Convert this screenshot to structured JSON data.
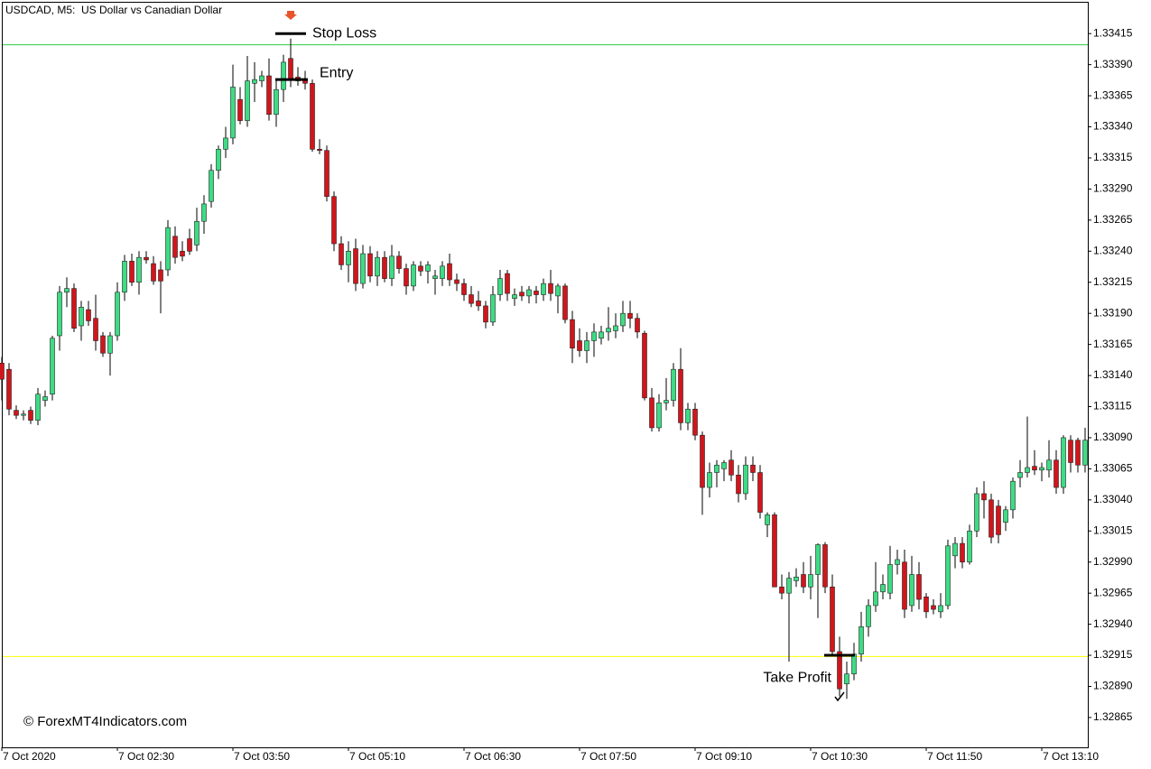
{
  "chart_data": {
    "type": "candlestick",
    "title": "USDCAD, M5:  US Dollar vs Canadian Dollar",
    "watermark": "© ForexMT4Indicators.com",
    "up_color": "#3ddc84",
    "down_color": "#d3151b",
    "ylim": [
      1.32841,
      1.33442
    ],
    "yticks": [
      {
        "value": 1.32865,
        "label": "1.32865"
      },
      {
        "value": 1.3289,
        "label": "1.32890"
      },
      {
        "value": 1.32915,
        "label": "1.32915"
      },
      {
        "value": 1.3294,
        "label": "1.32940"
      },
      {
        "value": 1.32965,
        "label": "1.32965"
      },
      {
        "value": 1.3299,
        "label": "1.32990"
      },
      {
        "value": 1.33015,
        "label": "1.33015"
      },
      {
        "value": 1.3304,
        "label": "1.33040"
      },
      {
        "value": 1.33065,
        "label": "1.33065"
      },
      {
        "value": 1.3309,
        "label": "1.33090"
      },
      {
        "value": 1.33115,
        "label": "1.33115"
      },
      {
        "value": 1.3314,
        "label": "1.33140"
      },
      {
        "value": 1.33165,
        "label": "1.33165"
      },
      {
        "value": 1.3319,
        "label": "1.33190"
      },
      {
        "value": 1.33215,
        "label": "1.33215"
      },
      {
        "value": 1.3324,
        "label": "1.33240"
      },
      {
        "value": 1.33265,
        "label": "1.33265"
      },
      {
        "value": 1.3329,
        "label": "1.33290"
      },
      {
        "value": 1.33315,
        "label": "1.33315"
      },
      {
        "value": 1.3334,
        "label": "1.33340"
      },
      {
        "value": 1.33365,
        "label": "1.33365"
      },
      {
        "value": 1.3339,
        "label": "1.33390"
      },
      {
        "value": 1.33415,
        "label": "1.33415"
      }
    ],
    "categories": [
      "7 Oct 2020",
      null,
      null,
      null,
      null,
      null,
      null,
      null,
      null,
      null,
      null,
      null,
      null,
      null,
      null,
      null,
      "7 Oct 02:30",
      null,
      null,
      null,
      null,
      null,
      null,
      null,
      null,
      null,
      null,
      null,
      null,
      null,
      null,
      null,
      "7 Oct 03:50",
      null,
      null,
      null,
      null,
      null,
      null,
      null,
      null,
      null,
      null,
      null,
      null,
      null,
      null,
      null,
      "7 Oct 05:10",
      null,
      null,
      null,
      null,
      null,
      null,
      null,
      null,
      null,
      null,
      null,
      null,
      null,
      null,
      null,
      "7 Oct 06:30",
      null,
      null,
      null,
      null,
      null,
      null,
      null,
      null,
      null,
      null,
      null,
      null,
      null,
      null,
      null,
      "7 Oct 07:50",
      null,
      null,
      null,
      null,
      null,
      null,
      null,
      null,
      null,
      null,
      null,
      null,
      null,
      null,
      null,
      "7 Oct 09:10",
      null,
      null,
      null,
      null,
      null,
      null,
      null,
      null,
      null,
      null,
      null,
      null,
      null,
      null,
      null,
      "7 Oct 10:30",
      null,
      null,
      null,
      null,
      null,
      null,
      null,
      null,
      null,
      null,
      null,
      null,
      null,
      null,
      null,
      "7 Oct 11:50",
      null,
      null,
      null,
      null,
      null,
      null,
      null,
      null,
      null,
      null,
      null,
      null,
      null,
      null,
      null,
      "7 Oct 13:10",
      null,
      null,
      null,
      null,
      null,
      null
    ],
    "open": [
      1.3315,
      1.33145,
      1.33112,
      1.33108,
      1.33112,
      1.33104,
      1.3312,
      1.33125,
      1.33172,
      1.33207,
      1.3321,
      1.3318,
      1.33193,
      1.33186,
      1.33172,
      1.33158,
      1.33172,
      1.33207,
      1.33232,
      1.33215,
      1.33235,
      1.3323,
      1.33225,
      1.33225,
      1.33252,
      1.3324,
      1.3325,
      1.33245,
      1.33264,
      1.3328,
      1.33305,
      1.33322,
      1.33331,
      1.33362,
      1.33345,
      1.33375,
      1.33377,
      1.33381,
      1.3335,
      1.3337,
      1.33395,
      1.3338,
      1.33378,
      1.33375,
      1.33322,
      1.33321,
      1.33284,
      1.33246,
      1.33229,
      1.33242,
      1.33214,
      1.33238,
      1.3322,
      1.33235,
      1.33218,
      1.33236,
      1.33226,
      1.33212,
      1.33228,
      1.33224,
      1.33218,
      1.33218,
      1.3323,
      1.33217,
      1.33214,
      1.33205,
      1.332,
      1.33196,
      1.33183,
      1.33205,
      1.33222,
      1.33202,
      1.33207,
      1.33204,
      1.33208,
      1.33205,
      1.33214,
      1.33204,
      1.33212,
      1.33185,
      1.33168,
      1.3316,
      1.33168,
      1.3317,
      1.33175,
      1.33176,
      1.3318,
      1.3319,
      1.33186,
      1.33174,
      1.33122,
      1.33098,
      1.33118,
      1.3312,
      1.33145,
      1.33102,
      1.33113,
      1.33092,
      1.3305,
      1.33062,
      1.33065,
      1.33072,
      1.3306,
      1.33045,
      1.33068,
      1.33062,
      1.3302,
      1.33028,
      1.3297,
      1.32965,
      1.32975,
      1.3298,
      1.3297,
      1.3298,
      1.33004,
      1.3297,
      1.32918,
      1.32892,
      1.329,
      1.32916,
      1.32938,
      1.32955,
      1.32966,
      1.32965,
      1.32988,
      1.3299,
      1.32955,
      1.3298,
      1.32962,
      1.32955,
      1.3295,
      1.32955,
      1.32995,
      1.33005,
      1.3299,
      1.33015,
      1.33045,
      1.3304,
      1.33035,
      1.33022,
      1.33032,
      1.33058,
      1.33062,
      1.33067,
      1.33064,
      1.33064,
      1.33072,
      1.3305,
      1.33088,
      1.33088,
      1.33068
    ],
    "high": [
      1.33155,
      1.3315,
      1.33116,
      1.33112,
      1.33115,
      1.3313,
      1.33128,
      1.33172,
      1.33212,
      1.33219,
      1.33214,
      1.332,
      1.332,
      1.33205,
      1.33175,
      1.33175,
      1.33215,
      1.33237,
      1.33238,
      1.3324,
      1.3324,
      1.33236,
      1.33232,
      1.33265,
      1.3326,
      1.33248,
      1.33258,
      1.33275,
      1.33285,
      1.3331,
      1.33325,
      1.3334,
      1.3339,
      1.33372,
      1.33397,
      1.33392,
      1.33385,
      1.33395,
      1.33378,
      1.33398,
      1.33411,
      1.33388,
      1.33385,
      1.33378,
      1.3333,
      1.33325,
      1.33288,
      1.33252,
      1.33248,
      1.3325,
      1.33245,
      1.33244,
      1.3324,
      1.3324,
      1.33245,
      1.3324,
      1.3323,
      1.33232,
      1.33232,
      1.33232,
      1.33225,
      1.33232,
      1.33238,
      1.33222,
      1.33218,
      1.33212,
      1.33208,
      1.332,
      1.33212,
      1.33225,
      1.33225,
      1.3321,
      1.33212,
      1.33212,
      1.33212,
      1.33218,
      1.33225,
      1.33214,
      1.33214,
      1.33192,
      1.33178,
      1.33175,
      1.33182,
      1.3318,
      1.33195,
      1.3319,
      1.332,
      1.332,
      1.3319,
      1.33176,
      1.3313,
      1.33125,
      1.33138,
      1.3315,
      1.33162,
      1.33118,
      1.33118,
      1.33095,
      1.3307,
      1.33072,
      1.33072,
      1.3308,
      1.33068,
      1.33075,
      1.33075,
      1.33068,
      1.3303,
      1.3303,
      1.3298,
      1.32982,
      1.32985,
      1.3299,
      1.32995,
      1.33005,
      1.33006,
      1.3298,
      1.3293,
      1.3291,
      1.32925,
      1.3295,
      1.3296,
      1.3299,
      1.3298,
      1.33003,
      1.33,
      1.33,
      1.32995,
      1.3299,
      1.32965,
      1.3296,
      1.32965,
      1.33008,
      1.3301,
      1.3301,
      1.3302,
      1.3305,
      1.33055,
      1.33045,
      1.3304,
      1.33035,
      1.33058,
      1.33072,
      1.33107,
      1.3308,
      1.3307,
      1.33088,
      1.3308,
      1.33092,
      1.33092,
      1.3309,
      1.33098
    ],
    "low": [
      1.3312,
      1.33108,
      1.33105,
      1.33104,
      1.33101,
      1.331,
      1.33115,
      1.3312,
      1.3316,
      1.33195,
      1.33175,
      1.33168,
      1.3318,
      1.3316,
      1.33155,
      1.3314,
      1.33168,
      1.332,
      1.33212,
      1.33205,
      1.3323,
      1.33213,
      1.3319,
      1.3322,
      1.3323,
      1.33232,
      1.33237,
      1.3324,
      1.33254,
      1.33275,
      1.33298,
      1.33315,
      1.33326,
      1.33342,
      1.3334,
      1.3336,
      1.33372,
      1.33345,
      1.3334,
      1.3336,
      1.33372,
      1.33373,
      1.3337,
      1.3332,
      1.33318,
      1.3328,
      1.3324,
      1.33225,
      1.33215,
      1.33208,
      1.3321,
      1.33215,
      1.33212,
      1.33215,
      1.33212,
      1.33222,
      1.33205,
      1.33208,
      1.3322,
      1.33214,
      1.33205,
      1.33212,
      1.33212,
      1.33208,
      1.332,
      1.33195,
      1.33192,
      1.33178,
      1.3318,
      1.332,
      1.332,
      1.33196,
      1.332,
      1.33198,
      1.33198,
      1.332,
      1.332,
      1.3319,
      1.33182,
      1.3315,
      1.33155,
      1.3315,
      1.33155,
      1.33165,
      1.33168,
      1.3317,
      1.33175,
      1.33178,
      1.3317,
      1.3312,
      1.33095,
      1.33095,
      1.33112,
      1.33115,
      1.33096,
      1.33096,
      1.33088,
      1.33028,
      1.33042,
      1.3305,
      1.33055,
      1.33055,
      1.33038,
      1.3304,
      1.33055,
      1.33025,
      1.3301,
      1.3297,
      1.3296,
      1.3291,
      1.3297,
      1.32965,
      1.3296,
      1.32945,
      1.32965,
      1.32915,
      1.32882,
      1.3288,
      1.32895,
      1.3291,
      1.3293,
      1.3295,
      1.3296,
      1.3296,
      1.3298,
      1.32945,
      1.3295,
      1.32952,
      1.32945,
      1.32948,
      1.32945,
      1.32952,
      1.32985,
      1.32985,
      1.32988,
      1.3301,
      1.33025,
      1.33005,
      1.33005,
      1.33015,
      1.33025,
      1.3305,
      1.33058,
      1.3306,
      1.33055,
      1.33058,
      1.33045,
      1.33045,
      1.33062,
      1.33062,
      1.33062
    ],
    "close": [
      1.33137,
      1.33113,
      1.33108,
      1.33109,
      1.33104,
      1.33125,
      1.33123,
      1.3317,
      1.33207,
      1.3321,
      1.33178,
      1.33195,
      1.33184,
      1.33168,
      1.33158,
      1.33172,
      1.33207,
      1.33232,
      1.33215,
      1.33235,
      1.33233,
      1.33216,
      1.33216,
      1.33259,
      1.33235,
      1.33236,
      1.3324,
      1.33264,
      1.33278,
      1.33305,
      1.33322,
      1.33331,
      1.33372,
      1.33345,
      1.33377,
      1.33378,
      1.33381,
      1.3335,
      1.3337,
      1.33392,
      1.33378,
      1.33377,
      1.33375,
      1.33322,
      1.33321,
      1.33284,
      1.33246,
      1.33229,
      1.3324,
      1.33214,
      1.33238,
      1.3322,
      1.33235,
      1.33218,
      1.33236,
      1.33226,
      1.33212,
      1.33229,
      1.33224,
      1.33229,
      1.3322,
      1.33228,
      1.33217,
      1.33214,
      1.33205,
      1.33198,
      1.33196,
      1.33183,
      1.33205,
      1.33218,
      1.33206,
      1.33205,
      1.33204,
      1.33209,
      1.33205,
      1.33214,
      1.33206,
      1.33212,
      1.33185,
      1.33162,
      1.3316,
      1.33168,
      1.33175,
      1.33175,
      1.33178,
      1.3318,
      1.3319,
      1.33186,
      1.33175,
      1.33122,
      1.33098,
      1.33118,
      1.3312,
      1.33145,
      1.33102,
      1.33113,
      1.33092,
      1.3305,
      1.33062,
      1.33068,
      1.3307,
      1.3306,
      1.33045,
      1.33068,
      1.33062,
      1.3303,
      1.33028,
      1.3297,
      1.32965,
      1.32977,
      1.32978,
      1.3297,
      1.3298,
      1.33004,
      1.3297,
      1.32918,
      1.32888,
      1.329,
      1.32916,
      1.32938,
      1.32955,
      1.32966,
      1.32972,
      1.32988,
      1.32992,
      1.32952,
      1.3298,
      1.3296,
      1.3295,
      1.32952,
      1.32955,
      1.33003,
      1.33005,
      1.3299,
      1.33015,
      1.33045,
      1.3304,
      1.3301,
      1.33012,
      1.33032,
      1.33055,
      1.33062,
      1.33066,
      1.33064,
      1.33066,
      1.33072,
      1.3305,
      1.3309,
      1.3307,
      1.33068,
      1.33088
    ],
    "hlines": [
      {
        "value": 1.33406,
        "color": "#2ecc40"
      },
      {
        "value": 1.32914,
        "color": "#ffff00"
      }
    ],
    "annotations": [
      {
        "text": "Stop Loss",
        "value": 1.33415
      },
      {
        "text": "Entry",
        "value": 1.33378
      },
      {
        "text": "Take Profit",
        "value": 1.32915
      }
    ]
  }
}
